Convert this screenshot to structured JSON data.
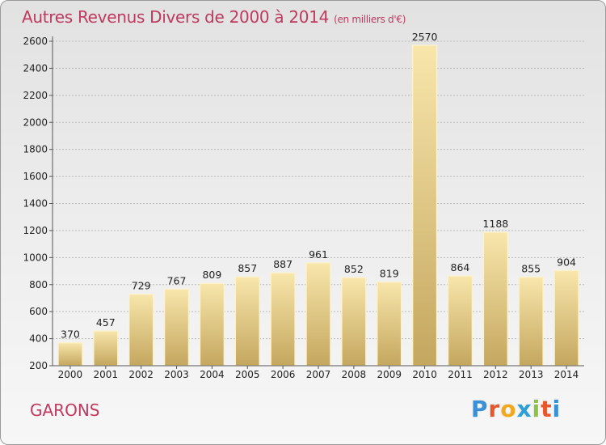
{
  "header": {
    "title": "Autres Revenus Divers de 2000 à 2014",
    "subtitle": "(en milliers d'€)"
  },
  "footer": {
    "town": "GARONS",
    "logo_text": "Proxiti"
  },
  "colors": {
    "title": "#c0395f",
    "bar_light": "#f7e2a3",
    "bar_dark": "#c6a962",
    "logo_letters": [
      "#3b8fd6",
      "#e8562a",
      "#f2a81d",
      "#2aa0d8",
      "#8bc53f",
      "#e8562a",
      "#3b8fd6"
    ]
  },
  "chart_data": {
    "type": "bar",
    "title": "Autres Revenus Divers de 2000 à 2014",
    "xlabel": "",
    "ylabel": "",
    "categories": [
      "2000",
      "2001",
      "2002",
      "2003",
      "2004",
      "2005",
      "2006",
      "2007",
      "2008",
      "2009",
      "2010",
      "2011",
      "2012",
      "2013",
      "2014"
    ],
    "values": [
      370,
      457,
      729,
      767,
      809,
      857,
      887,
      961,
      852,
      819,
      2570,
      864,
      1188,
      855,
      904
    ],
    "value_labels": [
      "370",
      "457",
      "729",
      "767",
      "809",
      "857",
      "887",
      "961",
      "852",
      "819",
      "2570",
      "864",
      "1188",
      "855",
      "904"
    ],
    "ylim": [
      200,
      2600
    ],
    "yticks": [
      200,
      400,
      600,
      800,
      1000,
      1200,
      1400,
      1600,
      1800,
      2000,
      2200,
      2400,
      2600
    ],
    "ytick_labels": [
      "200",
      "400",
      "600",
      "800",
      "1000",
      "1200",
      "1400",
      "1600",
      "1800",
      "2000",
      "2200",
      "2400",
      "2600"
    ],
    "grid": true,
    "legend": "none"
  }
}
